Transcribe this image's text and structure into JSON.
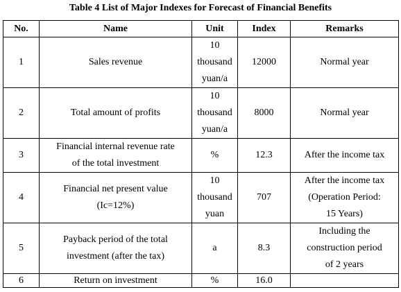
{
  "title": "Table 4 List of Major Indexes for Forecast of Financial Benefits",
  "headers": {
    "no": "No.",
    "name": "Name",
    "unit": "Unit",
    "index": "Index",
    "remarks": "Remarks"
  },
  "rows": [
    {
      "no": "1",
      "name": "Sales revenue",
      "unit": "10\nthousand\nyuan/a",
      "index": "12000",
      "remarks": "Normal year"
    },
    {
      "no": "2",
      "name": "Total amount of profits",
      "unit": "10\nthousand\nyuan/a",
      "index": "8000",
      "remarks": "Normal year"
    },
    {
      "no": "3",
      "name": "Financial internal revenue rate\nof the total investment",
      "unit": "%",
      "index": "12.3",
      "remarks": "After the income tax"
    },
    {
      "no": "4",
      "name": "Financial net present value\n(Ic=12%)",
      "unit": "10\nthousand\nyuan",
      "index": "707",
      "remarks": "After the income tax\n(Operation Period:\n15 Years)"
    },
    {
      "no": "5",
      "name": "Payback period of the total\ninvestment (after the tax)",
      "unit": "a",
      "index": "8.3",
      "remarks": "Including the\nconstruction period\nof 2 years"
    },
    {
      "no": "6",
      "name": "Return on investment",
      "unit": "%",
      "index": "16.0",
      "remarks": ""
    }
  ]
}
